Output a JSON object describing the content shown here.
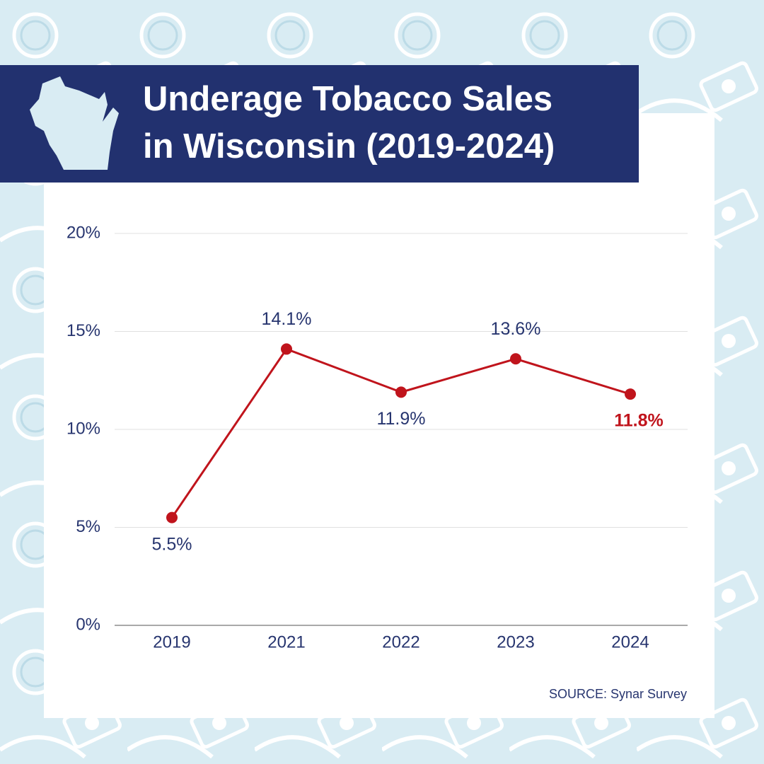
{
  "chart_data": {
    "type": "line",
    "title": [
      "Underage Tobacco Sales",
      "in Wisconsin  (2019-2024)"
    ],
    "categories": [
      "2019",
      "2021",
      "2022",
      "2023",
      "2024"
    ],
    "values": [
      5.5,
      14.1,
      11.9,
      13.6,
      11.8
    ],
    "value_labels": [
      "5.5%",
      "14.1%",
      "11.9%",
      "13.6%",
      "11.8%"
    ],
    "color": "#c0141c",
    "ylim": [
      0,
      20
    ],
    "yticks": [
      {
        "value": 0,
        "label": "0%"
      },
      {
        "value": 5,
        "label": "5%"
      },
      {
        "value": 10,
        "label": "10%"
      },
      {
        "value": 15,
        "label": "15%"
      },
      {
        "value": 20,
        "label": "20%"
      }
    ],
    "grid": true,
    "source": "SOURCE: Synar Survey"
  }
}
